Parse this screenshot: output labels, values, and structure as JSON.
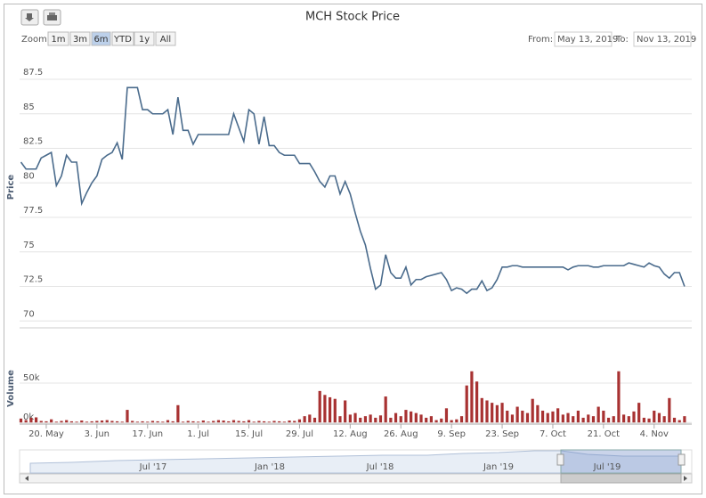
{
  "chart_data": {
    "type": "stock",
    "title": "MCH Stock Price",
    "ylabel": "Price",
    "y2label": "Volume",
    "categories": [
      null,
      null,
      null,
      null,
      null,
      "20. May",
      null,
      null,
      null,
      null,
      null,
      null,
      null,
      null,
      null,
      "3. Jun",
      null,
      null,
      null,
      null,
      null,
      null,
      null,
      null,
      null,
      "17. Jun",
      null,
      null,
      null,
      null,
      null,
      null,
      null,
      null,
      null,
      "1. Jul",
      null,
      null,
      null,
      null,
      null,
      null,
      null,
      null,
      null,
      "15. Jul",
      null,
      null,
      null,
      null,
      null,
      null,
      null,
      null,
      null,
      "29. Jul",
      null,
      null,
      null,
      null,
      null,
      null,
      null,
      null,
      null,
      "12. Aug",
      null,
      null,
      null,
      null,
      null,
      null,
      null,
      null,
      null,
      "26. Aug",
      null,
      null,
      null,
      null,
      null,
      null,
      null,
      null,
      null,
      "9. Sep",
      null,
      null,
      null,
      null,
      null,
      null,
      null,
      null,
      null,
      "23. Sep",
      null,
      null,
      null,
      null,
      null,
      null,
      null,
      null,
      null,
      "7. Oct",
      null,
      null,
      null,
      null,
      null,
      null,
      null,
      null,
      null,
      "21. Oct",
      null,
      null,
      null,
      null,
      null,
      null,
      null,
      null,
      null,
      "4. Nov",
      null,
      null,
      null,
      null,
      null,
      null
    ],
    "series": [
      {
        "name": "Price",
        "type": "line",
        "color": "#4a6b8c",
        "values": [
          81.5,
          81.0,
          81.0,
          81.0,
          81.8,
          82.0,
          82.2,
          79.8,
          80.5,
          82.0,
          81.5,
          81.5,
          78.5,
          79.3,
          80.0,
          80.5,
          81.7,
          82.0,
          82.2,
          82.9,
          81.7,
          86.9,
          86.9,
          86.9,
          85.3,
          85.3,
          85.0,
          85.0,
          85.0,
          85.3,
          83.5,
          86.2,
          83.8,
          83.8,
          82.8,
          83.5,
          83.5,
          83.5,
          83.5,
          83.5,
          83.5,
          83.5,
          85.0,
          84.0,
          83.0,
          85.3,
          85.0,
          82.8,
          84.8,
          82.7,
          82.7,
          82.2,
          82.0,
          82.0,
          82.0,
          81.4,
          81.4,
          81.4,
          80.8,
          80.1,
          79.7,
          80.5,
          80.5,
          79.2,
          80.1,
          79.2,
          77.8,
          76.5,
          75.5,
          73.8,
          72.3,
          72.6,
          74.8,
          73.5,
          73.1,
          73.1,
          73.9,
          72.6,
          73.0,
          73.0,
          73.2,
          73.3,
          73.4,
          73.5,
          73.0,
          72.2,
          72.4,
          72.3,
          72.0,
          72.3,
          72.3,
          72.9,
          72.2,
          72.4,
          73.0,
          73.9,
          73.9,
          74.0,
          74.0,
          73.9,
          73.9,
          73.9,
          73.9,
          73.9,
          73.9,
          73.9,
          73.9,
          73.9,
          73.7,
          73.9,
          74.0,
          74.0,
          74.0,
          73.9,
          73.9,
          74.0,
          74.0,
          74.0,
          74.0,
          74.0,
          74.2,
          74.1,
          74.0,
          73.9,
          74.2,
          74.0,
          73.9,
          73.4,
          73.1,
          73.5,
          73.5,
          72.5
        ]
      },
      {
        "name": "Volume",
        "type": "bar",
        "axis": "y2",
        "color": "#a83232",
        "values": [
          5000,
          3000,
          6000,
          6500,
          2000,
          1500,
          4000,
          1000,
          2000,
          3000,
          1500,
          1000,
          2500,
          1000,
          1500,
          2000,
          2500,
          3000,
          2000,
          1500,
          1000,
          16000,
          2000,
          1000,
          1500,
          1000,
          2000,
          1500,
          1000,
          3000,
          1500,
          22000,
          1000,
          2000,
          1500,
          1000,
          2500,
          1000,
          2000,
          3000,
          2500,
          1500,
          3000,
          2000,
          1500,
          3000,
          1000,
          2000,
          1500,
          1000,
          2000,
          1500,
          1000,
          2500,
          2000,
          4000,
          8000,
          10000,
          6000,
          40000,
          35000,
          32000,
          30000,
          8000,
          28000,
          10000,
          12000,
          6000,
          8000,
          10000,
          6000,
          9000,
          33000,
          6000,
          12000,
          8000,
          16000,
          14000,
          12000,
          10000,
          6000,
          8000,
          3000,
          5000,
          18000,
          3000,
          4000,
          8000,
          47000,
          65000,
          52000,
          31000,
          28000,
          25000,
          22000,
          25000,
          15000,
          10000,
          20000,
          15000,
          12000,
          30000,
          22000,
          15000,
          12000,
          14000,
          18000,
          10000,
          12000,
          8000,
          15000,
          6000,
          10000,
          8000,
          20000,
          15000,
          6000,
          8000,
          65000,
          10000,
          8000,
          14000,
          25000,
          6000,
          5000,
          15000,
          12000,
          8000,
          31000,
          6000,
          3000,
          8000
        ]
      }
    ],
    "ylim": [
      69.5,
      89.5
    ],
    "yticks": [
      70,
      72.5,
      75,
      77.5,
      80,
      82.5,
      85,
      87.5
    ],
    "y2lim": [
      -2000,
      93000
    ],
    "y2ticks": [
      {
        "value": 0,
        "label": "0k"
      },
      {
        "value": 50000,
        "label": "50k"
      }
    ],
    "grid": true
  },
  "range_selector": {
    "zoom_label": "Zoom",
    "buttons": [
      "1m",
      "3m",
      "6m",
      "YTD",
      "1y",
      "All"
    ],
    "selected": "6m",
    "from_label": "From:",
    "from": "May 13, 2019",
    "to_label": "To:",
    "to": "Nov 13, 2019"
  },
  "navigator": {
    "labels": [
      "Jul '17",
      "Jan '18",
      "Jul '18",
      "Jan '19",
      "Jul '19"
    ]
  }
}
